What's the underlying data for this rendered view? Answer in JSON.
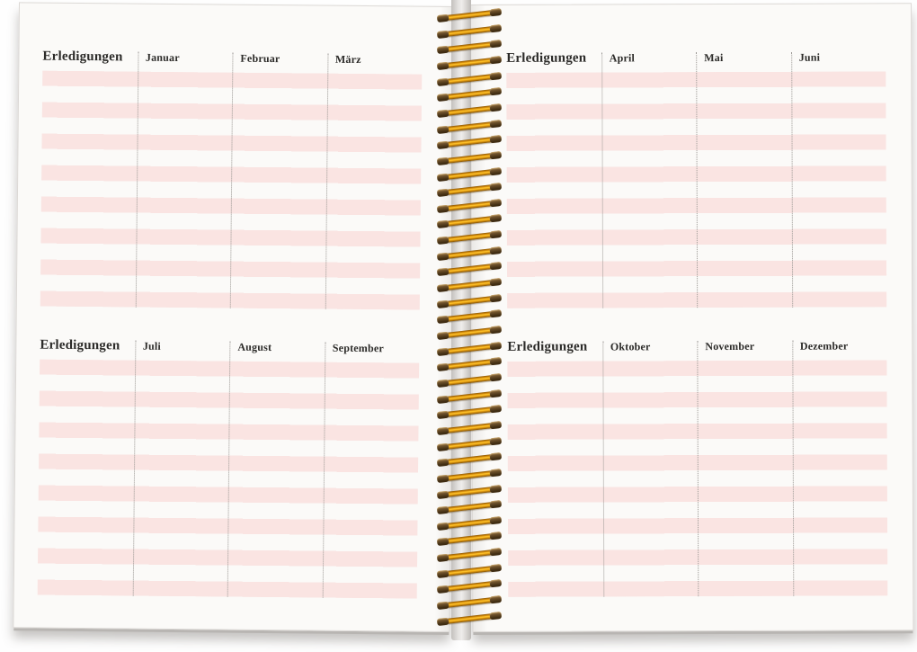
{
  "planner": {
    "left_page": {
      "top_section_index": 0,
      "bottom_section_index": 2
    },
    "right_page": {
      "top_section_index": 1,
      "bottom_section_index": 3
    },
    "sections": [
      {
        "title": "Erledigungen",
        "months": [
          "Januar",
          "Februar",
          "März"
        ]
      },
      {
        "title": "Erledigungen",
        "months": [
          "April",
          "Mai",
          "Juni"
        ]
      },
      {
        "title": "Erledigungen",
        "months": [
          "Juli",
          "August",
          "September"
        ]
      },
      {
        "title": "Erledigungen",
        "months": [
          "Oktober",
          "November",
          "Dezember"
        ]
      }
    ],
    "rows_per_section": 8
  },
  "binding": {
    "coil_count": 39
  },
  "colors": {
    "stripe_pink": "#fae4e2",
    "paper": "#fbfaf8",
    "coil_gold_highlight": "#ffc931",
    "binding_gap_gray": "#d7d5d3",
    "text": "#2c2b29"
  }
}
